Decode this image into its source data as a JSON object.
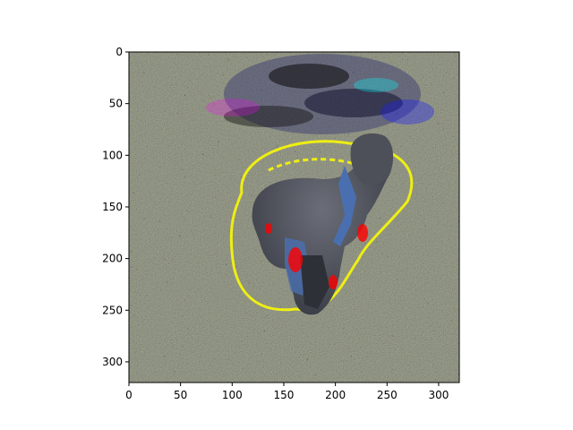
{
  "chart_data": {
    "type": "heatmap",
    "title": "",
    "xlabel": "",
    "ylabel": "",
    "xlim": [
      0,
      320
    ],
    "ylim": [
      320,
      0
    ],
    "x_ticks": [
      0,
      50,
      100,
      150,
      200,
      250,
      300
    ],
    "y_ticks": [
      0,
      50,
      100,
      150,
      200,
      250,
      300
    ],
    "x_tick_labels": [
      "0",
      "50",
      "100",
      "150",
      "200",
      "250",
      "300"
    ],
    "y_tick_labels": [
      "0",
      "50",
      "100",
      "150",
      "200",
      "250",
      "300"
    ],
    "image": {
      "description_colors": {
        "background_grass": "#9aa08a",
        "grass_light": "#c9cdbf",
        "grass_dark": "#6f7466",
        "dog_body": "#5a5d66",
        "dog_dark": "#3c3f48",
        "harness_blue": "#4a6fb0",
        "overlay_yellow": "#ffff00",
        "overlay_red": "#ff0000",
        "overlay_blue": "#1a1aff",
        "overlay_cyan": "#00ffff",
        "overlay_magenta": "#ff00ff",
        "overlay_black": "#000000"
      }
    },
    "grid": false,
    "legend": "none"
  }
}
